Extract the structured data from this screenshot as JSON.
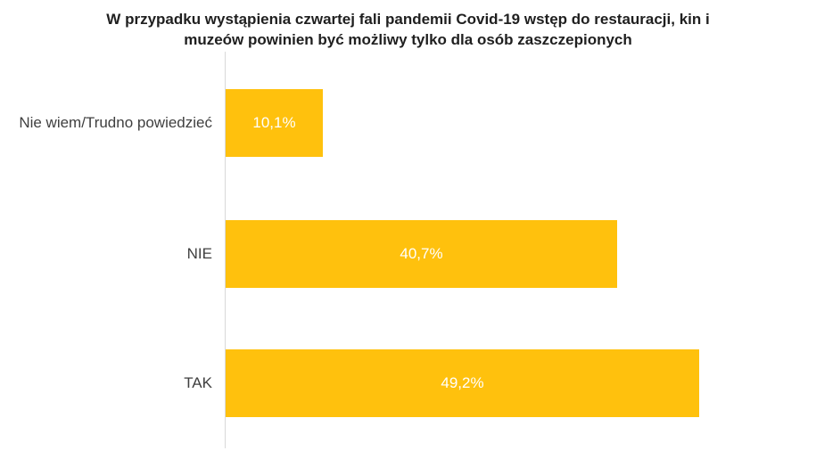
{
  "chart_data": {
    "type": "bar",
    "orientation": "horizontal",
    "title": "W przypadku wystąpienia czwartej fali pandemii Covid-19 wstęp do restauracji, kin i muzeów powinien być możliwy tylko dla osób zaszczepionych",
    "categories": [
      "Nie wiem/Trudno powiedzieć",
      "NIE",
      "TAK"
    ],
    "values": [
      10.1,
      40.7,
      49.2
    ],
    "value_labels": [
      "10,1%",
      "40,7%",
      "49,2%"
    ],
    "unit": "%",
    "xlim": [
      0,
      60
    ],
    "grid": false,
    "legend": "none",
    "category_order": "top-to-bottom",
    "colors": {
      "bar": "#FFC10D",
      "value_label": "#FFFFFF",
      "category_label": "#3F3F3F",
      "title": "#1F1F1F",
      "axis_line": "#D9D9D9",
      "background": "#FFFFFF"
    }
  }
}
